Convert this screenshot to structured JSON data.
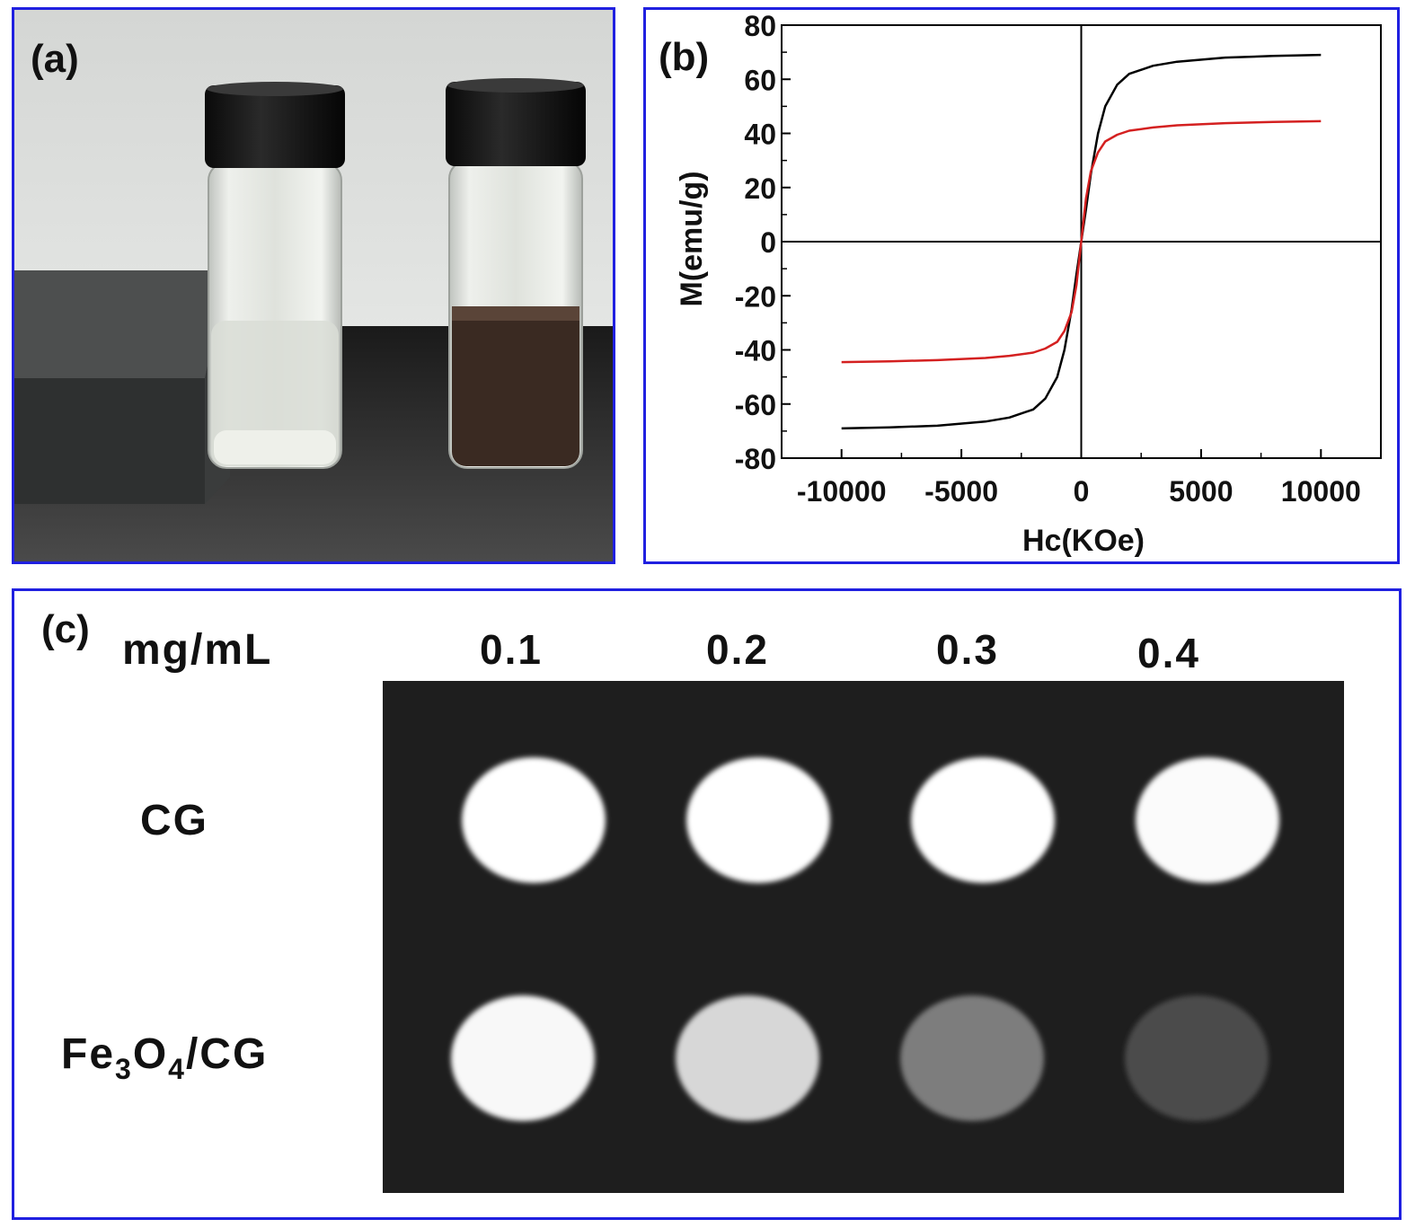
{
  "panel_a": {
    "label": "(a)",
    "vials": [
      {
        "contents": "clear liquid",
        "color": "#dfe3dc"
      },
      {
        "contents": "dark brown liquid",
        "color": "#3a2a22"
      }
    ]
  },
  "panel_b": {
    "label": "(b)"
  },
  "chart_data": {
    "type": "line",
    "xlabel": "Hc(KOe)",
    "ylabel": "M(emu/g)",
    "xlim": [
      -12500,
      12500
    ],
    "ylim": [
      -80,
      80
    ],
    "xticks": [
      -10000,
      -5000,
      0,
      5000,
      10000
    ],
    "yticks": [
      80,
      60,
      40,
      20,
      0,
      -20,
      -40,
      -60,
      -80
    ],
    "grid": false,
    "series": [
      {
        "color": "#000000",
        "x": [
          -10000,
          -8000,
          -6000,
          -4000,
          -3000,
          -2000,
          -1500,
          -1000,
          -700,
          -400,
          -200,
          0,
          200,
          400,
          700,
          1000,
          1500,
          2000,
          3000,
          4000,
          6000,
          8000,
          10000
        ],
        "y": [
          -69,
          -68.6,
          -68,
          -66.5,
          -65,
          -62,
          -58,
          -50,
          -40,
          -25,
          -12,
          0,
          12,
          25,
          40,
          50,
          58,
          62,
          65,
          66.5,
          68,
          68.6,
          69
        ]
      },
      {
        "color": "#d42020",
        "x": [
          -10000,
          -8000,
          -6000,
          -4000,
          -3000,
          -2000,
          -1500,
          -1000,
          -700,
          -400,
          -200,
          0,
          200,
          400,
          700,
          1000,
          1500,
          2000,
          3000,
          4000,
          6000,
          8000,
          10000
        ],
        "y": [
          -44.5,
          -44.2,
          -43.8,
          -43,
          -42.2,
          -41,
          -39.5,
          -37,
          -33,
          -26,
          -16,
          0,
          16,
          26,
          33,
          37,
          39.5,
          41,
          42.2,
          43,
          43.8,
          44.2,
          44.5
        ]
      }
    ]
  },
  "panel_c": {
    "label": "(c)",
    "unit_label": "mg/mL",
    "concentrations": [
      "0.1",
      "0.2",
      "0.3",
      "0.4"
    ],
    "rows": [
      {
        "name": "CG",
        "brightness": [
          1.0,
          1.0,
          1.0,
          0.98
        ]
      },
      {
        "name_parts": [
          "Fe",
          "3",
          "O",
          "4",
          "/CG"
        ],
        "brightness": [
          0.97,
          0.82,
          0.42,
          0.2
        ]
      }
    ]
  }
}
